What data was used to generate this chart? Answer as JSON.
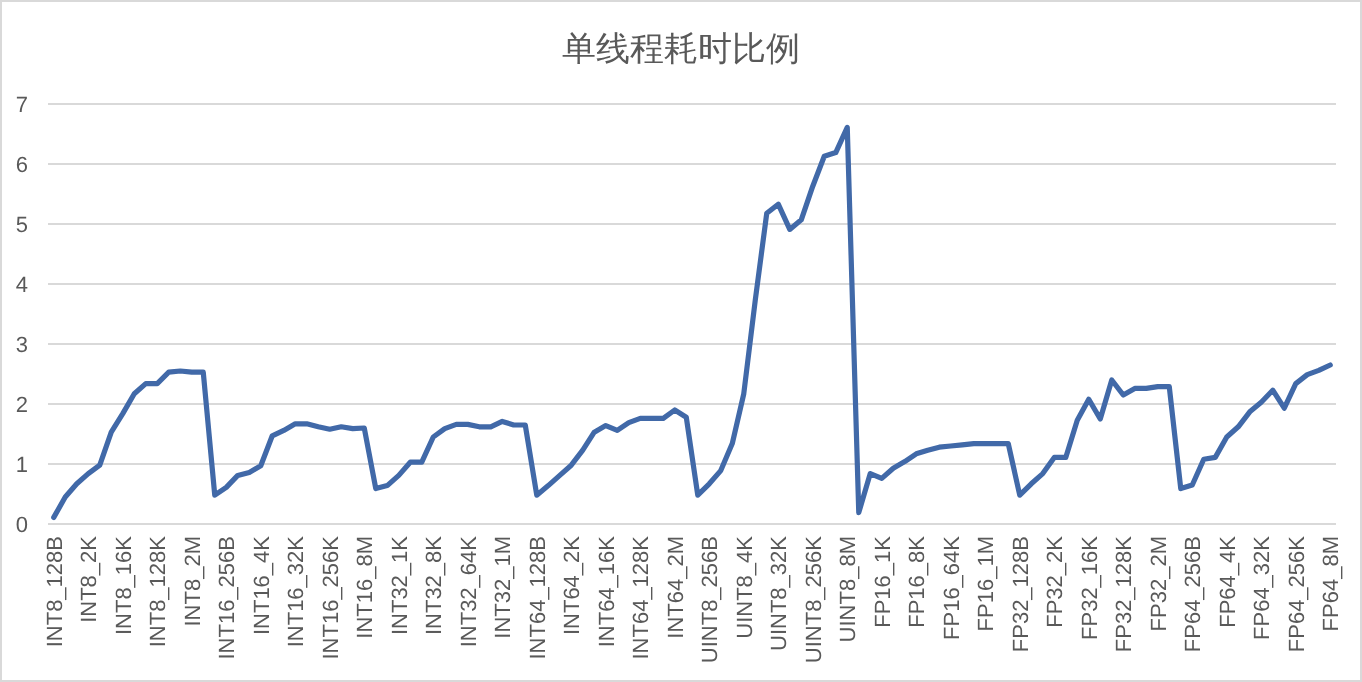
{
  "chart_data": {
    "type": "line",
    "title": "单线程耗时比例",
    "categories": [
      "INT8_128B",
      null,
      null,
      "INT8_2K",
      null,
      null,
      "INT8_16K",
      null,
      null,
      "INT8_128K",
      null,
      null,
      "INT8_2M",
      null,
      null,
      "INT16_256B",
      null,
      null,
      "INT16_4K",
      null,
      null,
      "INT16_32K",
      null,
      null,
      "INT16_256K",
      null,
      null,
      "INT16_8M",
      null,
      null,
      "INT32_1K",
      null,
      null,
      "INT32_8K",
      null,
      null,
      "INT32_64K",
      null,
      null,
      "INT32_1M",
      null,
      null,
      "INT64_128B",
      null,
      null,
      "INT64_2K",
      null,
      null,
      "INT64_16K",
      null,
      null,
      "INT64_128K",
      null,
      null,
      "INT64_2M",
      null,
      null,
      "UINT8_256B",
      null,
      null,
      "UINT8_4K",
      null,
      null,
      "UINT8_32K",
      null,
      null,
      "UINT8_256K",
      null,
      null,
      "UINT8_8M",
      null,
      null,
      "FP16_1K",
      null,
      null,
      "FP16_8K",
      null,
      null,
      "FP16_64K",
      null,
      null,
      "FP16_1M",
      null,
      null,
      "FP32_128B",
      null,
      null,
      "FP32_2K",
      null,
      null,
      "FP32_16K",
      null,
      null,
      "FP32_128K",
      null,
      null,
      "FP32_2M",
      null,
      null,
      "FP64_256B",
      null,
      null,
      "FP64_4K",
      null,
      null,
      "FP64_32K",
      null,
      null,
      "FP64_256K",
      null,
      null,
      "FP64_8M"
    ],
    "series": [
      {
        "color": "#4169a8",
        "values": [
          0.11,
          0.45,
          0.67,
          0.84,
          0.98,
          1.53,
          1.84,
          2.17,
          2.34,
          2.34,
          2.53,
          2.55,
          2.53,
          2.53,
          0.48,
          0.61,
          0.81,
          0.86,
          0.97,
          1.47,
          1.56,
          1.67,
          1.67,
          1.62,
          1.58,
          1.62,
          1.59,
          1.6,
          0.59,
          0.64,
          0.81,
          1.03,
          1.03,
          1.45,
          1.59,
          1.66,
          1.66,
          1.62,
          1.62,
          1.71,
          1.65,
          1.65,
          0.48,
          0.64,
          0.81,
          0.98,
          1.23,
          1.53,
          1.64,
          1.56,
          1.69,
          1.76,
          1.76,
          1.76,
          1.9,
          1.78,
          0.48,
          0.67,
          0.89,
          1.34,
          2.17,
          3.73,
          5.18,
          5.33,
          4.91,
          5.07,
          5.63,
          6.13,
          6.19,
          6.61,
          0.19,
          0.84,
          0.76,
          0.93,
          1.04,
          1.17,
          1.23,
          1.28,
          1.3,
          1.32,
          1.34,
          1.34,
          1.34,
          1.34,
          0.48,
          0.67,
          0.84,
          1.11,
          1.11,
          1.73,
          2.08,
          1.75,
          2.4,
          2.15,
          2.26,
          2.26,
          2.29,
          2.29,
          0.59,
          0.65,
          1.08,
          1.11,
          1.45,
          1.62,
          1.87,
          2.03,
          2.23,
          1.93,
          2.34,
          2.49,
          2.56,
          2.65
        ]
      }
    ],
    "ylim": [
      0,
      7
    ],
    "yticks": [
      0,
      1,
      2,
      3,
      4,
      5,
      6,
      7
    ],
    "grid": "y",
    "marker": "none",
    "line_style": "solid"
  }
}
